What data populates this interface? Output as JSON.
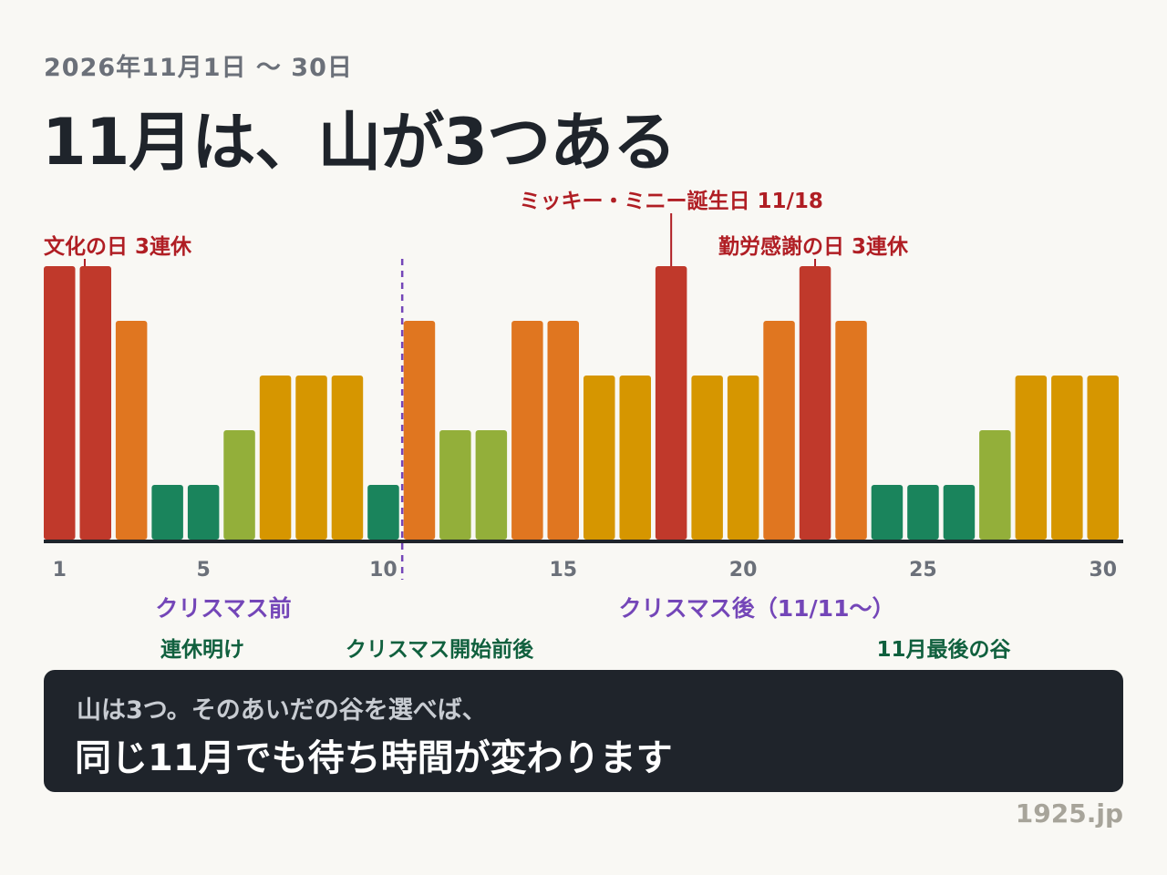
{
  "header": {
    "subtitle": "2026年11月1日 〜 30日",
    "title": "11月は、山が3つある"
  },
  "colors": {
    "very_high": "#c0392b",
    "high": "#e07620",
    "mid": "#d69600",
    "low_mid": "#93af3a",
    "low": "#1a845c",
    "purple": "#7446b8",
    "annotation_red": "#b01e24",
    "valley_green": "#10603e"
  },
  "chart_data": {
    "type": "bar",
    "categories": [
      1,
      2,
      3,
      4,
      5,
      6,
      7,
      8,
      9,
      10,
      11,
      12,
      13,
      14,
      15,
      16,
      17,
      18,
      19,
      20,
      21,
      22,
      23,
      24,
      25,
      26,
      27,
      28,
      29,
      30
    ],
    "values": [
      5,
      5,
      4,
      1,
      1,
      2,
      3,
      3,
      3,
      1,
      4,
      2,
      2,
      4,
      4,
      3,
      3,
      5,
      3,
      3,
      4,
      5,
      4,
      1,
      1,
      1,
      2,
      3,
      3,
      3
    ],
    "level_colors": {
      "1": "low",
      "2": "low_mid",
      "3": "mid",
      "4": "high",
      "5": "very_high"
    },
    "ylim": [
      0,
      5
    ],
    "x_ticks": [
      1,
      5,
      10,
      15,
      20,
      25,
      30
    ],
    "x_tick_labels": [
      "1",
      "5",
      "10",
      "15",
      "20",
      "25",
      "30"
    ],
    "divider_after_day": 10,
    "peak_annotations": [
      {
        "label": "文化の日 3連休",
        "days": [
          1,
          2
        ],
        "level": "low"
      },
      {
        "label": "ミッキー・ミニー誕生日 11/18",
        "days": [
          18
        ],
        "level": "high"
      },
      {
        "label": "勤労感謝の日 3連休",
        "days": [
          22
        ],
        "level": "low"
      }
    ],
    "period_labels": [
      {
        "label": "クリスマス前",
        "day_from": 1,
        "day_to": 10
      },
      {
        "label": "クリスマス後（11/11〜）",
        "day_from": 11,
        "day_to": 30
      }
    ],
    "valley_labels": [
      {
        "label": "連休明け",
        "day_from": 4,
        "day_to": 6
      },
      {
        "label": "クリスマス開始前後",
        "day_from": 10,
        "day_to": 13
      },
      {
        "label": "11月最後の谷",
        "day_from": 24,
        "day_to": 27
      }
    ]
  },
  "note": {
    "line1": "山は3つ。そのあいだの谷を選べば、",
    "line2": "同じ11月でも待ち時間が変わります"
  },
  "credit": "1925.jp"
}
